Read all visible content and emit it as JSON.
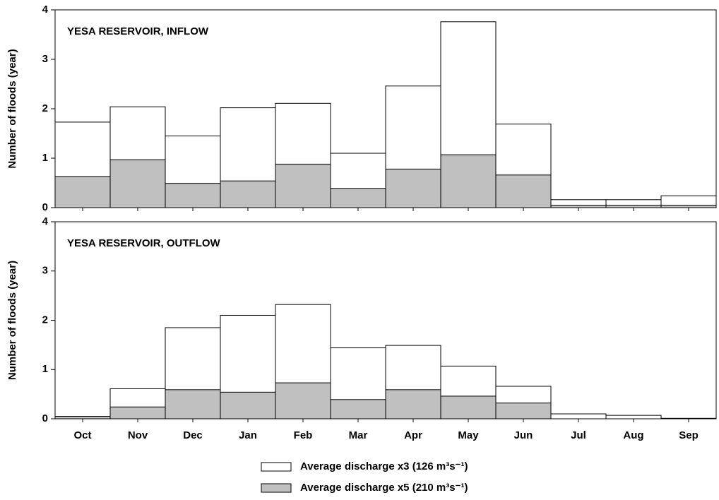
{
  "chart_data": [
    {
      "type": "bar",
      "title": "YESA RESERVOIR, INFLOW",
      "y_label": "Number of floods (year)",
      "categories": [
        null,
        null,
        null,
        null,
        null,
        null,
        null,
        null,
        null,
        null,
        null,
        null
      ],
      "series": [
        {
          "color": "#ffffff",
          "values": [
            1.73,
            2.04,
            1.45,
            2.02,
            2.11,
            1.1,
            2.46,
            3.76,
            1.69,
            0.16,
            0.16,
            0.24
          ]
        },
        {
          "color": "#c0c0c0",
          "values": [
            0.63,
            0.97,
            0.49,
            0.54,
            0.88,
            0.39,
            0.78,
            1.07,
            0.66,
            0.05,
            0.05,
            0.05
          ]
        }
      ],
      "ylim": [
        0,
        4
      ],
      "yticks": [
        0,
        1,
        2,
        3,
        4
      ],
      "grid": false
    },
    {
      "type": "bar",
      "title": "YESA RESERVOIR, OUTFLOW",
      "y_label": "Number of floods (year)",
      "categories": [
        "Oct",
        "Nov",
        "Dec",
        "Jan",
        "Feb",
        "Mar",
        "Apr",
        "May",
        "Jun",
        "Jul",
        "Aug",
        "Sep"
      ],
      "series": [
        {
          "name": "Average discharge x3  (126 m³s⁻¹)",
          "color": "#ffffff",
          "values": [
            0.05,
            0.61,
            1.85,
            2.1,
            2.32,
            1.44,
            1.49,
            1.07,
            0.66,
            0.1,
            0.07,
            0.01
          ]
        },
        {
          "name": "Average discharge x5  (210 m³s⁻¹)",
          "color": "#c0c0c0",
          "values": [
            0.05,
            0.24,
            0.59,
            0.54,
            0.73,
            0.39,
            0.59,
            0.46,
            0.32,
            0,
            0,
            0
          ]
        }
      ],
      "ylim": [
        0,
        4
      ],
      "yticks": [
        0,
        1,
        2,
        3,
        4
      ],
      "grid": false
    }
  ]
}
